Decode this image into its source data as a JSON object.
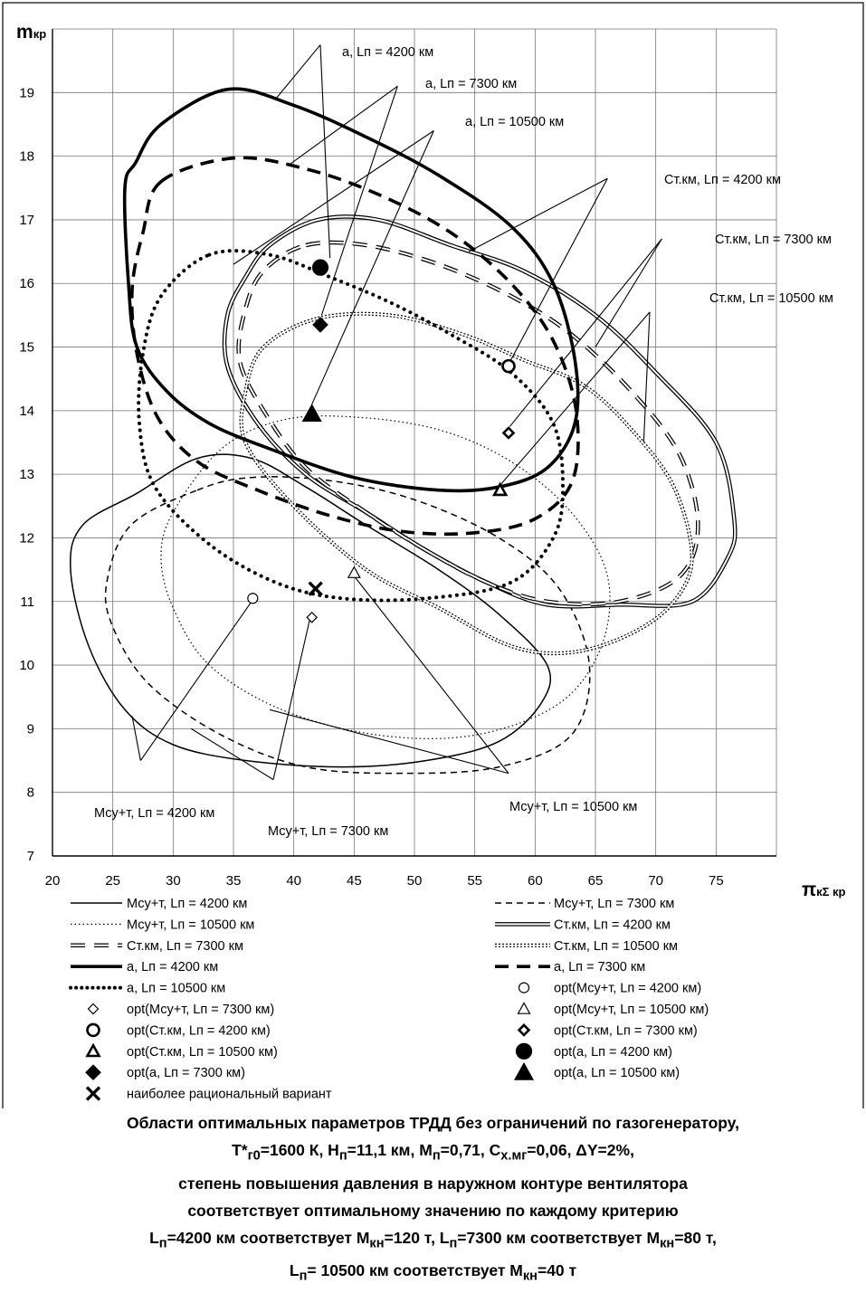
{
  "chart_data": {
    "type": "line",
    "ylabel": "m",
    "ylabel_sub": "кр",
    "xlabel": "π",
    "xlabel_sub": "кΣ кр",
    "xlim": [
      20,
      80
    ],
    "ylim": [
      7,
      20
    ],
    "xticks": [
      "20",
      "25",
      "30",
      "35",
      "40",
      "45",
      "50",
      "55",
      "60",
      "65",
      "70",
      "75"
    ],
    "yticks": [
      "7",
      "8",
      "9",
      "10",
      "11",
      "12",
      "13",
      "14",
      "15",
      "16",
      "17",
      "18",
      "19"
    ],
    "grid": true,
    "legend_position": "bottom",
    "series": [
      {
        "name": "Мсу+т, Lп = 4200 км",
        "style": "solid-thin",
        "points": [
          [
            27,
            12.7
          ],
          [
            32,
            13.25
          ],
          [
            36.5,
            13.25
          ],
          [
            41,
            12.8
          ],
          [
            46,
            12.2
          ],
          [
            52,
            11.5
          ],
          [
            57,
            10.8
          ],
          [
            61,
            10
          ],
          [
            60.5,
            9.4
          ],
          [
            57,
            8.8
          ],
          [
            51,
            8.5
          ],
          [
            44,
            8.4
          ],
          [
            36,
            8.5
          ],
          [
            30,
            8.75
          ],
          [
            26,
            9.3
          ],
          [
            23,
            10.3
          ],
          [
            21.5,
            11.5
          ],
          [
            22.5,
            12.2
          ]
        ]
      },
      {
        "name": "Мсу+т, Lп = 7300 км",
        "style": "dashed-thin",
        "points": [
          [
            32,
            12.75
          ],
          [
            36.5,
            12.95
          ],
          [
            43,
            12.9
          ],
          [
            50,
            12.6
          ],
          [
            57,
            12
          ],
          [
            62,
            11.2
          ],
          [
            64.5,
            10
          ],
          [
            63,
            8.9
          ],
          [
            57,
            8.4
          ],
          [
            49,
            8.3
          ],
          [
            41,
            8.4
          ],
          [
            34,
            8.9
          ],
          [
            28,
            9.7
          ],
          [
            25,
            10.6
          ],
          [
            24.5,
            11.3
          ],
          [
            26.5,
            12.2
          ]
        ]
      },
      {
        "name": "Мсу+т, Lп = 10500 км",
        "style": "dotted-thin",
        "points": [
          [
            30,
            12.4
          ],
          [
            34,
            13.4
          ],
          [
            39,
            13.85
          ],
          [
            45,
            13.9
          ],
          [
            52,
            13.7
          ],
          [
            58,
            13.2
          ],
          [
            63,
            12.4
          ],
          [
            66,
            11.4
          ],
          [
            65.5,
            10.3
          ],
          [
            62,
            9.4
          ],
          [
            55,
            8.9
          ],
          [
            47,
            8.9
          ],
          [
            39,
            9.3
          ],
          [
            33,
            10
          ],
          [
            30,
            10.9
          ],
          [
            29,
            11.7
          ]
        ]
      },
      {
        "name": "Ст.км, Lп = 4200 км",
        "style": "double",
        "points": [
          [
            38,
            16.6
          ],
          [
            42,
            17
          ],
          [
            47,
            17
          ],
          [
            53,
            16.6
          ],
          [
            59,
            16.2
          ],
          [
            65,
            15.5
          ],
          [
            70,
            14.6
          ],
          [
            75,
            13.5
          ],
          [
            76.5,
            12.3
          ],
          [
            76,
            11.7
          ],
          [
            73,
            11
          ],
          [
            67,
            10.95
          ],
          [
            61,
            10.95
          ],
          [
            56,
            11.3
          ],
          [
            51,
            11.8
          ],
          [
            46,
            12.4
          ],
          [
            41,
            13
          ],
          [
            37,
            13.8
          ],
          [
            34.5,
            14.7
          ],
          [
            34.5,
            15.5
          ],
          [
            36,
            16.1
          ]
        ]
      },
      {
        "name": "Ст.км, Lп = 7300 км",
        "style": "dash-double",
        "points": [
          [
            41,
            16.6
          ],
          [
            46,
            16.6
          ],
          [
            52,
            16.3
          ],
          [
            58,
            15.8
          ],
          [
            63,
            15.2
          ],
          [
            68,
            14.3
          ],
          [
            72,
            13.3
          ],
          [
            73.5,
            12.2
          ],
          [
            72,
            11.4
          ],
          [
            67,
            11
          ],
          [
            61,
            11
          ],
          [
            56,
            11.3
          ],
          [
            51,
            11.8
          ],
          [
            46,
            12.4
          ],
          [
            41,
            13.1
          ],
          [
            37.5,
            14
          ],
          [
            35.5,
            14.8
          ],
          [
            36,
            15.6
          ],
          [
            37.5,
            16.2
          ]
        ]
      },
      {
        "name": "Ст.км, Lп = 10500 км",
        "style": "double-dotted",
        "points": [
          [
            42,
            15.45
          ],
          [
            48,
            15.5
          ],
          [
            54,
            15.2
          ],
          [
            59,
            14.8
          ],
          [
            64,
            14.4
          ],
          [
            68,
            13.7
          ],
          [
            71.5,
            12.8
          ],
          [
            73,
            11.7
          ],
          [
            71.5,
            11
          ],
          [
            68,
            10.5
          ],
          [
            63,
            10.2
          ],
          [
            58,
            10.3
          ],
          [
            52,
            10.9
          ],
          [
            46,
            11.5
          ],
          [
            40,
            12.5
          ],
          [
            36,
            13.5
          ],
          [
            36,
            14.3
          ],
          [
            37.5,
            15
          ]
        ]
      },
      {
        "name": "a, Lп = 4200 км",
        "style": "solid-thick",
        "points": [
          [
            29,
            18.5
          ],
          [
            34.5,
            19.05
          ],
          [
            40,
            18.8
          ],
          [
            46,
            18.3
          ],
          [
            52,
            17.7
          ],
          [
            58,
            16.9
          ],
          [
            61.5,
            16
          ],
          [
            63.3,
            14.8
          ],
          [
            63.3,
            13.8
          ],
          [
            61,
            13.1
          ],
          [
            57,
            12.8
          ],
          [
            52,
            12.75
          ],
          [
            45,
            12.95
          ],
          [
            38,
            13.4
          ],
          [
            33,
            13.8
          ],
          [
            29.5,
            14.3
          ],
          [
            27,
            15
          ],
          [
            26.3,
            16
          ],
          [
            26,
            17.5
          ],
          [
            26.9,
            17.9
          ]
        ]
      },
      {
        "name": "a, Lп = 7300 км",
        "style": "dashed-thick",
        "points": [
          [
            29,
            17.6
          ],
          [
            35,
            17.97
          ],
          [
            41,
            17.8
          ],
          [
            47,
            17.4
          ],
          [
            53,
            16.8
          ],
          [
            58,
            16
          ],
          [
            61.5,
            15.1
          ],
          [
            63.4,
            14
          ],
          [
            63.1,
            12.9
          ],
          [
            60,
            12.3
          ],
          [
            55,
            12.08
          ],
          [
            49,
            12.1
          ],
          [
            43,
            12.35
          ],
          [
            37,
            12.75
          ],
          [
            32,
            13.2
          ],
          [
            28.7,
            13.9
          ],
          [
            27,
            14.9
          ],
          [
            26.6,
            15.9
          ],
          [
            27.5,
            16.8
          ]
        ]
      },
      {
        "name": "a, Lп = 10500 км",
        "style": "dotted-thick",
        "points": [
          [
            33,
            16.45
          ],
          [
            38,
            16.45
          ],
          [
            43,
            16.1
          ],
          [
            48,
            15.7
          ],
          [
            53,
            15.2
          ],
          [
            58,
            14.6
          ],
          [
            61.5,
            13.8
          ],
          [
            62.3,
            12.8
          ],
          [
            61.5,
            12
          ],
          [
            58,
            11.3
          ],
          [
            51,
            11.05
          ],
          [
            44,
            11.05
          ],
          [
            38.5,
            11.3
          ],
          [
            33,
            11.9
          ],
          [
            28.5,
            12.8
          ],
          [
            27.2,
            13.8
          ],
          [
            27.5,
            14.9
          ],
          [
            29,
            15.8
          ]
        ]
      }
    ],
    "optima": [
      {
        "name": "opt(Мсу+т, Lп = 4200 км)",
        "marker": "circle-open",
        "x": 36.6,
        "y": 11.05
      },
      {
        "name": "opt(Мсу+т, Lп = 7300 км)",
        "marker": "diamond-open",
        "x": 41.5,
        "y": 10.75
      },
      {
        "name": "opt(Мсу+т, Lп = 10500 км)",
        "marker": "triangle-open",
        "x": 45,
        "y": 11.45
      },
      {
        "name": "opt(Ст.км, Lп = 4200 км)",
        "marker": "circle-open-bold",
        "x": 57.8,
        "y": 14.7
      },
      {
        "name": "opt(Ст.км, Lп = 7300 км)",
        "marker": "diamond-open-bold",
        "x": 57.8,
        "y": 13.65
      },
      {
        "name": "opt(Ст.км, Lп = 10500 км)",
        "marker": "triangle-open-bold",
        "x": 57.1,
        "y": 12.75
      },
      {
        "name": "opt(a, Lп = 4200 км)",
        "marker": "circle-filled",
        "x": 42.2,
        "y": 16.25
      },
      {
        "name": "opt(a, Lп = 7300 км)",
        "marker": "diamond-filled",
        "x": 42.2,
        "y": 15.35
      },
      {
        "name": "opt(a, Lп = 10500 км)",
        "marker": "triangle-filled",
        "x": 41.5,
        "y": 13.95
      },
      {
        "name": "наиболее рациональный вариант",
        "marker": "cross",
        "x": 41.8,
        "y": 11.2
      }
    ],
    "annotations": [
      {
        "text": "a, Lп = 4200 км",
        "anchor": [
          42.2,
          19.75
        ],
        "targets": [
          [
            38.5,
            18.9
          ],
          [
            43,
            16.4
          ]
        ]
      },
      {
        "text": "a, Lп = 7300 км",
        "anchor": [
          48.6,
          19.1
        ],
        "targets": [
          [
            39.5,
            17.85
          ],
          [
            42.3,
            15.5
          ]
        ]
      },
      {
        "text": "a, Lп = 10500 км",
        "anchor": [
          51.6,
          18.4
        ],
        "targets": [
          [
            35,
            16.3
          ],
          [
            41.5,
            14.1
          ]
        ]
      },
      {
        "text": "Ст.км, Lп = 4200 км",
        "anchor": [
          66,
          17.65
        ],
        "targets": [
          [
            54.5,
            16.5
          ],
          [
            58,
            14.8
          ]
        ]
      },
      {
        "text": "Ст.км, Lп = 7300 км",
        "anchor": [
          70.5,
          16.7
        ],
        "targets": [
          [
            65,
            15
          ],
          [
            57.9,
            13.75
          ]
        ]
      },
      {
        "text": "Ст.км, Lп = 10500 км",
        "anchor": [
          69.5,
          15.55
        ],
        "targets": [
          [
            69,
            13.5
          ],
          [
            57.2,
            12.85
          ]
        ]
      },
      {
        "text": "Мсу+т, Lп = 4200 км",
        "anchor": [
          27.3,
          8.5
        ],
        "targets": [
          [
            26.6,
            9.2
          ],
          [
            36.5,
            11
          ]
        ]
      },
      {
        "text": "Мсу+т, Lп = 7300 км",
        "anchor": [
          38.3,
          8.2
        ],
        "targets": [
          [
            31.5,
            9
          ],
          [
            41.3,
            10.7
          ]
        ]
      },
      {
        "text": "Мсу+т, Lп = 10500 км",
        "anchor": [
          57.8,
          8.3
        ],
        "targets": [
          [
            38,
            9.3
          ],
          [
            45,
            11.4
          ]
        ]
      }
    ]
  },
  "labels": {
    "leg_r0c0": "Мсу+т, Lп = 4200 км",
    "leg_r0c1": "Мсу+т, Lп = 7300 км",
    "leg_r1c0": "Мсу+т, Lп = 10500 км",
    "leg_r1c1": "Ст.км, Lп = 4200 км",
    "leg_r2c0": "Ст.км, Lп = 7300 км",
    "leg_r2c1": "Ст.км, Lп = 10500 км",
    "leg_r3c0": "a, Lп = 4200 км",
    "leg_r3c1": "a, Lп = 7300 км",
    "leg_r4c0": "a, Lп = 10500 км",
    "leg_r4c1": "opt(Мсу+т, Lп = 4200 км)",
    "leg_r5c0": "opt(Мсу+т, Lп = 7300 км)",
    "leg_r5c1": "opt(Мсу+т, Lп = 10500 км)",
    "leg_r6c0": "opt(Ст.км, Lп = 4200 км)",
    "leg_r6c1": "opt(Ст.км, Lп = 7300 км)",
    "leg_r7c0": "opt(Ст.км, Lп = 10500 км)",
    "leg_r7c1": "opt(a, Lп = 4200 км)",
    "leg_r8c0": "opt(a, Lп = 7300 км)",
    "leg_r8c1": "opt(a, Lп = 10500 км)",
    "leg_r9c0": "наиболее рациональный вариант"
  },
  "caption": {
    "line1": "Области оптимальных параметров ТРДД без ограничений по газогенератору,",
    "line2_a": "T*",
    "line2_b": "г0",
    "line2_c": "=1600 К, H",
    "line2_d": "п",
    "line2_e": "=11,1 км, M",
    "line2_f": "п",
    "line2_g": "=0,71, C",
    "line2_h": "х.мг",
    "line2_i": "=0,06, ΔY=2%,",
    "line3": "степень повышения давления в наружном контуре вентилятора",
    "line4": "соответствует оптимальному значению по каждому критерию",
    "line5_a": "L",
    "line5_b": "п",
    "line5_c": "=4200 км соответствует M",
    "line5_d": "кн",
    "line5_e": "=120 т, L",
    "line5_f": "п",
    "line5_g": "=7300 км соответствует M",
    "line5_h": "кн",
    "line5_i": "=80 т,",
    "line6_a": "L",
    "line6_b": "п",
    "line6_c": "= 10500 км соответствует M",
    "line6_d": "кн",
    "line6_e": "=40 т"
  }
}
